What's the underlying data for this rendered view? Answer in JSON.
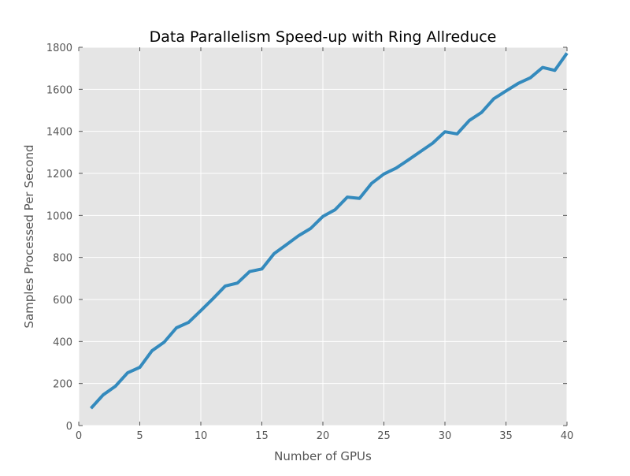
{
  "chart_data": {
    "type": "line",
    "title": "Data Parallelism Speed-up with Ring Allreduce",
    "xlabel": "Number of GPUs",
    "ylabel": "Samples Processed Per Second",
    "xlim": [
      0,
      40
    ],
    "ylim": [
      0,
      1800
    ],
    "xticks": [
      0,
      5,
      10,
      15,
      20,
      25,
      30,
      35,
      40
    ],
    "yticks": [
      0,
      200,
      400,
      600,
      800,
      1000,
      1200,
      1400,
      1600,
      1800
    ],
    "grid": true,
    "colors": {
      "line": "#348abd",
      "background": "#e5e5e5",
      "grid": "#ffffff"
    },
    "series": [
      {
        "x": [
          1,
          2,
          3,
          4,
          5,
          6,
          7,
          8,
          9,
          10,
          11,
          12,
          13,
          14,
          15,
          16,
          17,
          18,
          19,
          20,
          21,
          22,
          23,
          24,
          25,
          26,
          27,
          28,
          29,
          30,
          31,
          32,
          33,
          34,
          35,
          36,
          37,
          38,
          39,
          40
        ],
        "values": [
          82,
          146,
          187,
          251,
          277,
          356,
          397,
          465,
          491,
          547,
          604,
          664,
          678,
          733,
          745,
          818,
          860,
          903,
          938,
          995,
          1027,
          1087,
          1081,
          1153,
          1197,
          1225,
          1264,
          1304,
          1344,
          1398,
          1388,
          1452,
          1490,
          1555,
          1592,
          1628,
          1655,
          1704,
          1690,
          1772
        ]
      }
    ]
  }
}
